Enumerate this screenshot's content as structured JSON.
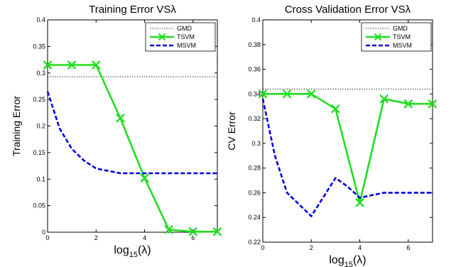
{
  "colors": {
    "gmd": "#000000",
    "tsvm": "#22dd22",
    "msvm": "#0000dd"
  },
  "chart_data": [
    {
      "type": "line",
      "title": "Training Error VSλ",
      "xlabel_base": "log",
      "xlabel_sub": "15",
      "xlabel_arg": "(λ)",
      "ylabel": "Training Error",
      "xlim": [
        0,
        7
      ],
      "ylim": [
        0,
        0.4
      ],
      "xticks": [
        0,
        2,
        4,
        6
      ],
      "xtick_labels": [
        "0",
        "2",
        "4",
        "6"
      ],
      "yticks": [
        0,
        0.05,
        0.1,
        0.15,
        0.2,
        0.25,
        0.3,
        0.35,
        0.4
      ],
      "ytick_labels": [
        "0",
        "0.05",
        "0.1",
        "0.15",
        "0.2",
        "0.25",
        "0.3",
        "0.35",
        "0.4"
      ],
      "legend_position": "top-right",
      "grid": false,
      "series": [
        {
          "name": "GMD",
          "style": "dotted",
          "color": "#000000",
          "x": [
            0,
            7
          ],
          "values": [
            0.293,
            0.293
          ]
        },
        {
          "name": "TSVM",
          "style": "solid-x",
          "color": "#22dd22",
          "x": [
            0,
            1,
            2,
            3,
            4,
            5,
            6,
            7
          ],
          "values": [
            0.315,
            0.315,
            0.315,
            0.215,
            0.102,
            0.005,
            0.001,
            0.001
          ]
        },
        {
          "name": "MSVM",
          "style": "dashed",
          "color": "#0000dd",
          "x": [
            0,
            0.5,
            1,
            1.5,
            2,
            3,
            4,
            5,
            6,
            7
          ],
          "values": [
            0.265,
            0.195,
            0.157,
            0.135,
            0.12,
            0.111,
            0.111,
            0.111,
            0.111,
            0.111
          ]
        }
      ]
    },
    {
      "type": "line",
      "title": "Cross Validation Error VSλ",
      "xlabel_base": "log",
      "xlabel_sub": "15",
      "xlabel_arg": "(λ)",
      "ylabel": "CV Error",
      "xlim": [
        0,
        7
      ],
      "ylim": [
        0.22,
        0.4
      ],
      "xticks": [
        0,
        2,
        4,
        6
      ],
      "xtick_labels": [
        "0",
        "2",
        "4",
        "6"
      ],
      "yticks": [
        0.22,
        0.24,
        0.26,
        0.28,
        0.3,
        0.32,
        0.34,
        0.36,
        0.38,
        0.4
      ],
      "ytick_labels": [
        "0.22",
        "0.24",
        "0.26",
        "0.28",
        "0.3",
        "0.32",
        "0.34",
        "0.36",
        "0.38",
        "0.4"
      ],
      "legend_position": "top-right",
      "grid": false,
      "series": [
        {
          "name": "GMD",
          "style": "dotted",
          "color": "#000000",
          "x": [
            0,
            7
          ],
          "values": [
            0.344,
            0.344
          ]
        },
        {
          "name": "TSVM",
          "style": "solid-x",
          "color": "#22dd22",
          "x": [
            0,
            1,
            2,
            3,
            4,
            5,
            6,
            7
          ],
          "values": [
            0.34,
            0.34,
            0.34,
            0.328,
            0.252,
            0.336,
            0.332,
            0.332
          ]
        },
        {
          "name": "MSVM",
          "style": "dashed",
          "color": "#0000dd",
          "x": [
            0,
            0.5,
            1,
            2,
            3,
            3.5,
            4,
            5,
            6,
            7
          ],
          "values": [
            0.336,
            0.29,
            0.26,
            0.241,
            0.272,
            0.265,
            0.256,
            0.26,
            0.26,
            0.26
          ]
        }
      ]
    }
  ]
}
